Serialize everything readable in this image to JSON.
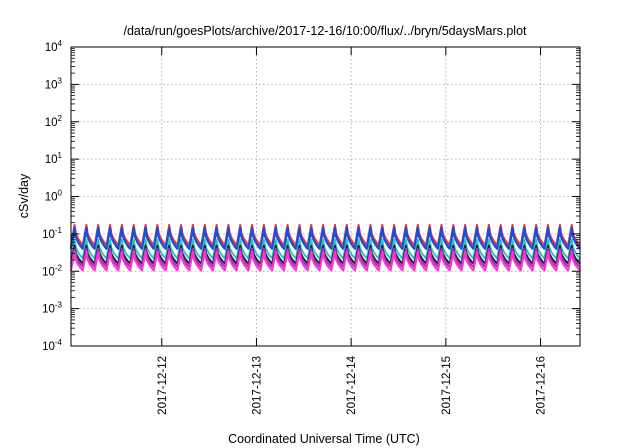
{
  "chart_data": {
    "type": "line",
    "title": "/data/run/goesPlots/archive/2017-12-16/10:00/flux/../bryn/5daysMars.plot",
    "xlabel": "Coordinated Universal Time (UTC)",
    "ylabel": "cSv/day",
    "y_scale": "log",
    "ylim": [
      0.0001,
      10000
    ],
    "y_ticks": [
      {
        "base": "10",
        "exp": "-4",
        "value": 0.0001
      },
      {
        "base": "10",
        "exp": "-3",
        "value": 0.001
      },
      {
        "base": "10",
        "exp": "-2",
        "value": 0.01
      },
      {
        "base": "10",
        "exp": "-1",
        "value": 0.1
      },
      {
        "base": "10",
        "exp": "0",
        "value": 1
      },
      {
        "base": "10",
        "exp": "1",
        "value": 10
      },
      {
        "base": "10",
        "exp": "2",
        "value": 100
      },
      {
        "base": "10",
        "exp": "3",
        "value": 1000
      },
      {
        "base": "10",
        "exp": "4",
        "value": 10000
      }
    ],
    "xlim": [
      "2017-12-11T01:00",
      "2017-12-16T10:00"
    ],
    "x_ticks": [
      "2017-12-12",
      "2017-12-13",
      "2017-12-14",
      "2017-12-15",
      "2017-12-16"
    ],
    "grid": true,
    "legend": "none",
    "pattern": {
      "period_hours": 3,
      "peak_fraction": 0.3
    },
    "series": [
      {
        "color": "#ff3333",
        "peak": 0.175,
        "trough": 0.05
      },
      {
        "color": "#1a4fd6",
        "peak": 0.145,
        "trough": 0.04
      },
      {
        "color": "#29c4c4",
        "peak": 0.07,
        "trough": 0.022
      },
      {
        "color": "#222222",
        "peak": 0.048,
        "trough": 0.016
      },
      {
        "color": "#9b30d8",
        "peak": 0.04,
        "trough": 0.013
      },
      {
        "color": "#ff33cc",
        "peak": 0.033,
        "trough": 0.0105
      }
    ]
  }
}
